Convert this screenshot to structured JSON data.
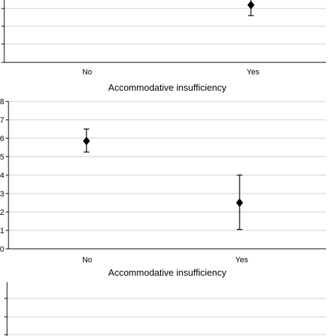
{
  "chart_data": [
    {
      "type": "scatter",
      "categories": [
        "No",
        "Yes"
      ],
      "values": [
        null,
        null
      ],
      "error_high": [
        null,
        null
      ],
      "error_low": [
        null,
        null
      ],
      "xlabel": "Accommodative insufficiency",
      "ylabel": "",
      "grid": true,
      "note": "top panel cropped; Yes point visible near top edge"
    },
    {
      "type": "scatter",
      "categories": [
        "No",
        "Yes"
      ],
      "values": [
        5.85,
        2.5
      ],
      "error_high": [
        6.5,
        4.0
      ],
      "error_low": [
        5.25,
        1.05
      ],
      "ylim": [
        0,
        8
      ],
      "yticks": [
        "0",
        "1",
        "2",
        "3",
        "4",
        "5",
        "6",
        "7",
        "8"
      ],
      "xlabel": "Accommodative insufficiency",
      "ylabel": "",
      "grid": true
    },
    {
      "type": "scatter",
      "categories": [],
      "values": [],
      "xlabel": "",
      "ylabel": "",
      "grid": true,
      "note": "bottom panel cropped"
    }
  ],
  "labels": {
    "top_xlabel": "Accommodative insufficiency",
    "mid_xlabel": "Accommodative insufficiency",
    "top_cat_no": "No",
    "top_cat_yes": "Yes",
    "mid_cat_no": "No",
    "mid_cat_yes": "Yes"
  }
}
